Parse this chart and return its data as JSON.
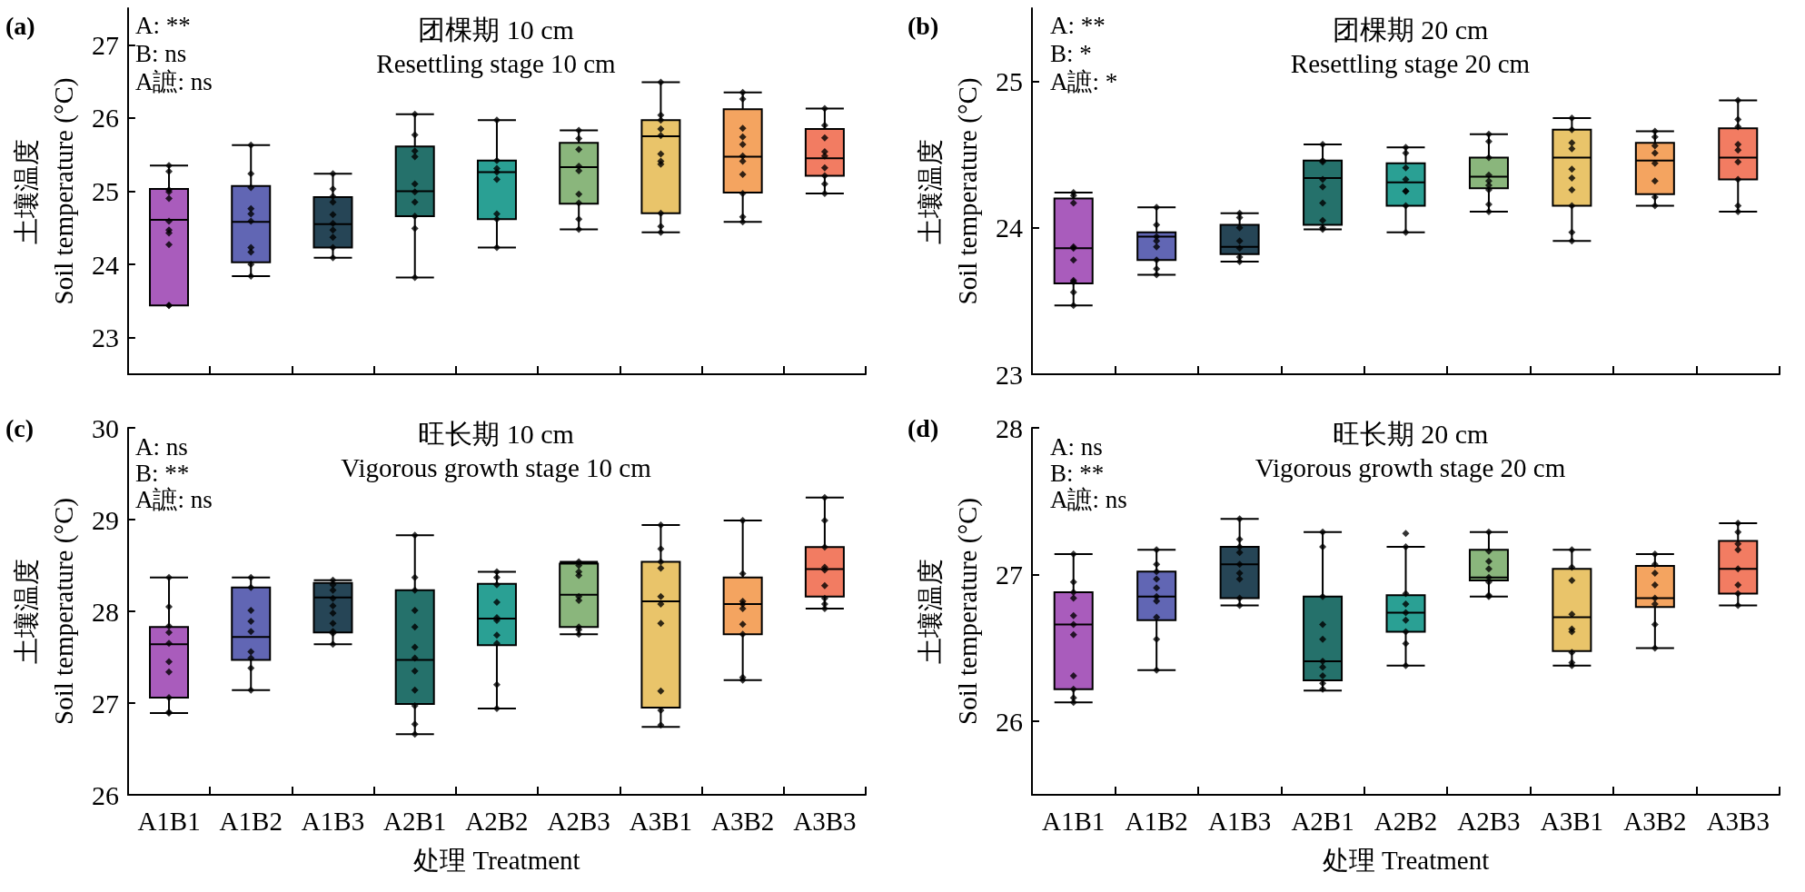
{
  "chart_data": [
    {
      "type": "box",
      "title": "团棵期 10 cm",
      "subtitle": "Resettling stage 10 cm",
      "ylabel": "土壤温度\nSoil temperature (°C)",
      "annotations": [
        "(a)",
        "A: **",
        "B: ns",
        "A謶: ns"
      ],
      "categories": [
        "A1B1",
        "A1B2",
        "A1B3",
        "A2B1",
        "A2B2",
        "A2B3",
        "A3B1",
        "A3B2",
        "A3B3"
      ],
      "colors": [
        "#a95cbc",
        "#6166b4",
        "#264556",
        "#25716b",
        "#2aa094",
        "#8ab67c",
        "#e9c46a",
        "#f4a460",
        "#f27c62"
      ],
      "boxes": [
        {
          "low": 23.44,
          "q1": 23.44,
          "median": 24.61,
          "q3": 25.03,
          "high": 25.35
        },
        {
          "low": 23.84,
          "q1": 24.03,
          "median": 24.58,
          "q3": 25.07,
          "high": 25.63
        },
        {
          "low": 24.09,
          "q1": 24.23,
          "median": 24.55,
          "q3": 24.92,
          "high": 25.24
        },
        {
          "low": 23.82,
          "q1": 24.66,
          "median": 25.0,
          "q3": 25.61,
          "high": 26.05
        },
        {
          "low": 24.23,
          "q1": 24.62,
          "median": 25.26,
          "q3": 25.42,
          "high": 25.97
        },
        {
          "low": 24.48,
          "q1": 24.83,
          "median": 25.33,
          "q3": 25.66,
          "high": 25.83
        },
        {
          "low": 24.44,
          "q1": 24.7,
          "median": 25.75,
          "q3": 25.97,
          "high": 26.49
        },
        {
          "low": 24.58,
          "q1": 24.98,
          "median": 25.47,
          "q3": 26.12,
          "high": 26.35
        },
        {
          "low": 24.97,
          "q1": 25.21,
          "median": 25.45,
          "q3": 25.85,
          "high": 26.13
        }
      ],
      "series": [
        {
          "type": "scatter",
          "color": "#000000",
          "x": [
            "A1B1",
            "A1B1",
            "A1B1",
            "A1B1",
            "A1B1",
            "A1B1",
            "A1B1",
            "A1B1",
            "A1B1",
            "A1B1",
            "A1B1",
            "A1B2",
            "A1B2",
            "A1B2",
            "A1B2",
            "A1B2",
            "A1B2",
            "A1B2",
            "A1B2",
            "A1B2",
            "A1B2",
            "A1B3",
            "A1B3",
            "A1B3",
            "A1B3",
            "A1B3",
            "A1B3",
            "A1B3",
            "A1B3",
            "A1B3",
            "A1B3",
            "A2B1",
            "A2B1",
            "A2B1",
            "A2B1",
            "A2B1",
            "A2B1",
            "A2B1",
            "A2B1",
            "A2B1",
            "A2B1",
            "A2B2",
            "A2B2",
            "A2B2",
            "A2B2",
            "A2B2",
            "A2B2",
            "A2B2",
            "A2B2",
            "A2B3",
            "A2B3",
            "A2B3",
            "A2B3",
            "A2B3",
            "A2B3",
            "A2B3",
            "A2B3",
            "A2B3",
            "A3B1",
            "A3B1",
            "A3B1",
            "A3B1",
            "A3B1",
            "A3B1",
            "A3B1",
            "A3B1",
            "A3B1",
            "A3B1",
            "A3B1",
            "A3B2",
            "A3B2",
            "A3B2",
            "A3B2",
            "A3B2",
            "A3B2",
            "A3B2",
            "A3B2",
            "A3B2",
            "A3B2",
            "A3B2",
            "A3B3",
            "A3B3",
            "A3B3",
            "A3B3",
            "A3B3",
            "A3B3",
            "A3B3",
            "A3B3",
            "A3B3"
          ],
          "values": [
            25.35,
            25.27,
            25.02,
            24.99,
            24.9,
            24.59,
            24.47,
            24.43,
            24.27,
            23.44,
            23.44,
            25.63,
            25.24,
            25.05,
            24.76,
            24.69,
            24.59,
            24.23,
            24.17,
            24.0,
            23.84,
            25.24,
            25.03,
            24.93,
            24.85,
            24.68,
            24.56,
            24.47,
            24.37,
            24.23,
            24.09,
            26.05,
            25.77,
            25.55,
            25.47,
            25.1,
            24.99,
            24.85,
            24.66,
            24.49,
            23.82,
            25.97,
            25.42,
            25.31,
            25.26,
            25.16,
            24.69,
            24.62,
            24.23,
            25.83,
            25.72,
            25.57,
            25.34,
            25.28,
            24.96,
            24.84,
            24.62,
            24.48,
            26.49,
            26.04,
            25.97,
            25.85,
            25.76,
            25.51,
            25.41,
            25.37,
            24.7,
            24.52,
            24.44,
            26.35,
            26.26,
            25.86,
            25.74,
            25.64,
            25.48,
            25.41,
            25.23,
            24.97,
            24.65,
            24.58,
            26.13,
            25.9,
            25.73,
            25.54,
            25.48,
            25.32,
            25.21,
            25.1,
            24.97
          ]
        }
      ],
      "marker": "diamond",
      "ylim": [
        22.5,
        27.5
      ],
      "yticks": [
        23,
        24,
        25,
        26,
        27
      ],
      "tick_labels": "y"
    },
    {
      "type": "box",
      "title": "团棵期 20 cm",
      "subtitle": "Resettling stage 20 cm",
      "ylabel": "土壤温度\nSoil temperature (°C)",
      "annotations": [
        "(b)",
        "A: **",
        "B: *",
        "A謶: *"
      ],
      "categories": [
        "A1B1",
        "A1B2",
        "A1B3",
        "A2B1",
        "A2B2",
        "A2B3",
        "A3B1",
        "A3B2",
        "A3B3"
      ],
      "colors": [
        "#a95cbc",
        "#6166b4",
        "#264556",
        "#25716b",
        "#2aa094",
        "#8ab67c",
        "#e9c46a",
        "#f4a460",
        "#f27c62"
      ],
      "boxes": [
        {
          "low": 23.47,
          "q1": 23.62,
          "median": 23.86,
          "q3": 24.2,
          "high": 24.24
        },
        {
          "low": 23.68,
          "q1": 23.78,
          "median": 23.94,
          "q3": 23.97,
          "high": 24.14
        },
        {
          "low": 23.77,
          "q1": 23.82,
          "median": 23.87,
          "q3": 24.02,
          "high": 24.1
        },
        {
          "low": 23.99,
          "q1": 24.02,
          "median": 24.34,
          "q3": 24.46,
          "high": 24.57
        },
        {
          "low": 23.97,
          "q1": 24.15,
          "median": 24.31,
          "q3": 24.44,
          "high": 24.55
        },
        {
          "low": 24.11,
          "q1": 24.27,
          "median": 24.35,
          "q3": 24.48,
          "high": 24.64
        },
        {
          "low": 23.91,
          "q1": 24.15,
          "median": 24.48,
          "q3": 24.67,
          "high": 24.75
        },
        {
          "low": 24.15,
          "q1": 24.23,
          "median": 24.46,
          "q3": 24.58,
          "high": 24.66
        },
        {
          "low": 24.11,
          "q1": 24.33,
          "median": 24.48,
          "q3": 24.68,
          "high": 24.87
        }
      ],
      "series": [
        {
          "type": "scatter",
          "color": "#000000",
          "x": [
            "A1B1",
            "A1B1",
            "A1B1",
            "A1B1",
            "A1B1",
            "A1B1",
            "A1B1",
            "A1B1",
            "A1B1",
            "A1B1",
            "A1B2",
            "A1B2",
            "A1B2",
            "A1B2",
            "A1B2",
            "A1B2",
            "A1B2",
            "A1B2",
            "A1B3",
            "A1B3",
            "A1B3",
            "A1B3",
            "A1B3",
            "A1B3",
            "A1B3",
            "A2B1",
            "A2B1",
            "A2B1",
            "A2B1",
            "A2B1",
            "A2B1",
            "A2B1",
            "A2B1",
            "A2B1",
            "A2B2",
            "A2B2",
            "A2B2",
            "A2B2",
            "A2B2",
            "A2B2",
            "A2B2",
            "A2B2",
            "A2B3",
            "A2B3",
            "A2B3",
            "A2B3",
            "A2B3",
            "A2B3",
            "A2B3",
            "A2B3",
            "A2B3",
            "A3B1",
            "A3B1",
            "A3B1",
            "A3B1",
            "A3B1",
            "A3B1",
            "A3B1",
            "A3B1",
            "A3B1",
            "A3B1",
            "A3B2",
            "A3B2",
            "A3B2",
            "A3B2",
            "A3B2",
            "A3B2",
            "A3B2",
            "A3B2",
            "A3B3",
            "A3B3",
            "A3B3",
            "A3B3",
            "A3B3",
            "A3B3",
            "A3B3",
            "A3B3",
            "A3B3"
          ],
          "values": [
            24.24,
            24.22,
            24.17,
            23.87,
            23.86,
            23.78,
            23.64,
            23.63,
            23.56,
            23.47,
            24.14,
            24.02,
            23.94,
            23.91,
            23.87,
            23.78,
            23.72,
            23.68,
            24.1,
            24.07,
            24.0,
            23.91,
            23.86,
            23.8,
            23.77,
            24.57,
            24.46,
            24.45,
            24.33,
            24.28,
            24.17,
            24.05,
            24.0,
            23.99,
            24.55,
            24.51,
            24.41,
            24.33,
            24.25,
            24.25,
            24.15,
            23.97,
            24.64,
            24.59,
            24.48,
            24.36,
            24.32,
            24.29,
            24.26,
            24.16,
            24.11,
            24.75,
            24.67,
            24.58,
            24.54,
            24.4,
            24.34,
            24.26,
            24.15,
            23.97,
            23.91,
            24.66,
            24.62,
            24.56,
            24.51,
            24.44,
            24.32,
            24.21,
            24.15,
            24.87,
            24.74,
            24.69,
            24.57,
            24.53,
            24.45,
            24.33,
            24.15,
            24.11
          ]
        }
      ],
      "marker": "diamond",
      "ylim": [
        23,
        25.5
      ],
      "yticks": [
        23,
        24,
        25
      ],
      "tick_labels": "y"
    },
    {
      "type": "box",
      "title": "旺长期 10 cm",
      "subtitle": "Vigorous growth stage 10 cm",
      "xlabel": "处理 Treatment",
      "ylabel": "土壤温度\nSoil temperature (°C)",
      "annotations": [
        "(c)",
        "A: ns",
        "B: **",
        "A謶: ns"
      ],
      "categories": [
        "A1B1",
        "A1B2",
        "A1B3",
        "A2B1",
        "A2B2",
        "A2B3",
        "A3B1",
        "A3B2",
        "A3B3"
      ],
      "colors": [
        "#a95cbc",
        "#6166b4",
        "#264556",
        "#25716b",
        "#2aa094",
        "#8ab67c",
        "#e9c46a",
        "#f4a460",
        "#f27c62"
      ],
      "boxes": [
        {
          "low": 26.89,
          "q1": 27.06,
          "median": 27.64,
          "q3": 27.83,
          "high": 28.37
        },
        {
          "low": 27.14,
          "q1": 27.47,
          "median": 27.72,
          "q3": 28.26,
          "high": 28.37
        },
        {
          "low": 27.64,
          "q1": 27.77,
          "median": 28.15,
          "q3": 28.31,
          "high": 28.34
        },
        {
          "low": 26.66,
          "q1": 26.99,
          "median": 27.47,
          "q3": 28.23,
          "high": 28.83
        },
        {
          "low": 26.94,
          "q1": 27.63,
          "median": 27.92,
          "q3": 28.3,
          "high": 28.43
        },
        {
          "low": 27.75,
          "q1": 27.83,
          "median": 28.18,
          "q3": 28.52,
          "high": 28.54
        },
        {
          "low": 26.74,
          "q1": 26.95,
          "median": 28.11,
          "q3": 28.54,
          "high": 28.94
        },
        {
          "low": 27.25,
          "q1": 27.75,
          "median": 28.08,
          "q3": 28.37,
          "high": 28.99
        },
        {
          "low": 28.03,
          "q1": 28.16,
          "median": 28.46,
          "q3": 28.7,
          "high": 29.24
        }
      ],
      "series": [
        {
          "type": "scatter",
          "color": "#000000",
          "x": [
            "A1B1",
            "A1B1",
            "A1B1",
            "A1B1",
            "A1B1",
            "A1B1",
            "A1B1",
            "A1B1",
            "A1B1",
            "A1B1",
            "A1B2",
            "A1B2",
            "A1B2",
            "A1B2",
            "A1B2",
            "A1B2",
            "A1B2",
            "A1B2",
            "A1B2",
            "A1B3",
            "A1B3",
            "A1B3",
            "A1B3",
            "A1B3",
            "A1B3",
            "A1B3",
            "A1B3",
            "A1B3",
            "A1B3",
            "A2B1",
            "A2B1",
            "A2B1",
            "A2B1",
            "A2B1",
            "A2B1",
            "A2B1",
            "A2B1",
            "A2B1",
            "A2B1",
            "A2B1",
            "A2B1",
            "A2B2",
            "A2B2",
            "A2B2",
            "A2B2",
            "A2B2",
            "A2B2",
            "A2B2",
            "A2B2",
            "A2B2",
            "A2B2",
            "A2B3",
            "A2B3",
            "A2B3",
            "A2B3",
            "A2B3",
            "A2B3",
            "A2B3",
            "A2B3",
            "A2B3",
            "A3B1",
            "A3B1",
            "A3B1",
            "A3B1",
            "A3B1",
            "A3B1",
            "A3B1",
            "A3B1",
            "A3B1",
            "A3B1",
            "A3B2",
            "A3B2",
            "A3B2",
            "A3B2",
            "A3B2",
            "A3B2",
            "A3B2",
            "A3B2",
            "A3B2",
            "A3B3",
            "A3B3",
            "A3B3",
            "A3B3",
            "A3B3",
            "A3B3",
            "A3B3",
            "A3B3",
            "A3B3"
          ],
          "values": [
            28.37,
            28.05,
            27.84,
            27.77,
            27.65,
            27.45,
            27.34,
            27.06,
            26.9,
            26.89,
            28.37,
            28.26,
            28.01,
            27.89,
            27.78,
            27.56,
            27.49,
            27.38,
            27.14,
            28.34,
            28.29,
            28.23,
            28.14,
            28.06,
            27.98,
            27.87,
            27.78,
            27.76,
            27.64,
            28.83,
            28.37,
            28.23,
            28.01,
            27.83,
            27.61,
            27.49,
            27.35,
            27.14,
            26.97,
            26.77,
            26.66,
            28.43,
            28.37,
            28.29,
            28.1,
            27.93,
            27.9,
            27.74,
            27.65,
            27.2,
            26.94,
            28.54,
            28.5,
            28.43,
            28.39,
            28.16,
            28.12,
            27.83,
            27.8,
            27.75,
            28.94,
            28.68,
            28.54,
            28.47,
            28.16,
            28.08,
            27.87,
            27.13,
            26.92,
            26.76,
            28.99,
            28.41,
            28.11,
            28.08,
            28.03,
            27.86,
            27.75,
            27.28,
            27.25,
            29.24,
            28.99,
            28.7,
            28.48,
            28.45,
            28.28,
            28.14,
            28.08,
            28.03
          ]
        }
      ],
      "marker": "diamond",
      "ylim": [
        26,
        30
      ],
      "yticks": [
        26,
        27,
        28,
        29,
        30
      ]
    },
    {
      "type": "box",
      "title": "旺长期 20 cm",
      "subtitle": "Vigorous growth stage 20 cm",
      "xlabel": "处理 Treatment",
      "ylabel": "土壤温度\nSoil temperature (°C)",
      "annotations": [
        "(d)",
        "A: ns",
        "B: **",
        "A謶: ns"
      ],
      "categories": [
        "A1B1",
        "A1B2",
        "A1B3",
        "A2B1",
        "A2B2",
        "A2B3",
        "A3B1",
        "A3B2",
        "A3B3"
      ],
      "colors": [
        "#a95cbc",
        "#6166b4",
        "#264556",
        "#25716b",
        "#2aa094",
        "#8ab67c",
        "#e9c46a",
        "#f4a460",
        "#f27c62"
      ],
      "boxes": [
        {
          "low": 26.13,
          "q1": 26.22,
          "median": 26.66,
          "q3": 26.88,
          "high": 27.14
        },
        {
          "low": 26.35,
          "q1": 26.69,
          "median": 26.85,
          "q3": 27.02,
          "high": 27.17
        },
        {
          "low": 26.79,
          "q1": 26.84,
          "median": 27.07,
          "q3": 27.19,
          "high": 27.38
        },
        {
          "low": 26.21,
          "q1": 26.28,
          "median": 26.41,
          "q3": 26.85,
          "high": 27.29
        },
        {
          "low": 26.38,
          "q1": 26.61,
          "median": 26.74,
          "q3": 26.86,
          "high": 27.19
        },
        {
          "low": 26.85,
          "q1": 26.96,
          "median": 26.98,
          "q3": 27.17,
          "high": 27.29
        },
        {
          "low": 26.38,
          "q1": 26.48,
          "median": 26.71,
          "q3": 27.04,
          "high": 27.17
        },
        {
          "low": 26.5,
          "q1": 26.78,
          "median": 26.84,
          "q3": 27.06,
          "high": 27.14
        },
        {
          "low": 26.79,
          "q1": 26.87,
          "median": 27.04,
          "q3": 27.23,
          "high": 27.35
        }
      ],
      "series": [
        {
          "type": "scatter",
          "color": "#000000",
          "x": [
            "A1B1",
            "A1B1",
            "A1B1",
            "A1B1",
            "A1B1",
            "A1B1",
            "A1B1",
            "A1B1",
            "A1B1",
            "A1B1",
            "A1B1",
            "A1B2",
            "A1B2",
            "A1B2",
            "A1B2",
            "A1B2",
            "A1B2",
            "A1B2",
            "A1B2",
            "A1B2",
            "A1B2",
            "A1B3",
            "A1B3",
            "A1B3",
            "A1B3",
            "A1B3",
            "A1B3",
            "A1B3",
            "A1B3",
            "A1B3",
            "A2B1",
            "A2B1",
            "A2B1",
            "A2B1",
            "A2B1",
            "A2B1",
            "A2B1",
            "A2B1",
            "A2B1",
            "A2B1",
            "A2B2",
            "A2B2",
            "A2B2",
            "A2B2",
            "A2B2",
            "A2B2",
            "A2B2",
            "A2B2",
            "A2B2",
            "A2B3",
            "A2B3",
            "A2B3",
            "A2B3",
            "A2B3",
            "A2B3",
            "A2B3",
            "A2B3",
            "A3B1",
            "A3B1",
            "A3B1",
            "A3B1",
            "A3B1",
            "A3B1",
            "A3B1",
            "A3B1",
            "A3B1",
            "A3B2",
            "A3B2",
            "A3B2",
            "A3B2",
            "A3B2",
            "A3B2",
            "A3B2",
            "A3B2",
            "A3B3",
            "A3B3",
            "A3B3",
            "A3B3",
            "A3B3",
            "A3B3",
            "A3B3",
            "A3B3"
          ],
          "values": [
            27.14,
            26.95,
            26.88,
            26.84,
            26.72,
            26.66,
            26.59,
            26.31,
            26.22,
            26.16,
            26.13,
            27.17,
            27.07,
            27.02,
            26.97,
            26.91,
            26.85,
            26.82,
            26.71,
            26.56,
            26.35,
            27.38,
            27.24,
            27.19,
            27.15,
            27.07,
            27.01,
            26.97,
            26.84,
            26.79,
            27.29,
            27.19,
            26.85,
            26.66,
            26.56,
            26.41,
            26.37,
            26.31,
            26.26,
            26.22,
            27.28,
            27.19,
            26.87,
            26.8,
            26.74,
            26.69,
            26.61,
            26.53,
            26.38,
            27.29,
            27.16,
            27.09,
            27.04,
            26.98,
            26.95,
            26.86,
            26.85,
            27.17,
            27.05,
            26.96,
            26.73,
            26.63,
            26.61,
            26.47,
            26.4,
            26.38,
            27.14,
            27.07,
            27.01,
            26.93,
            26.84,
            26.8,
            26.66,
            26.5,
            27.35,
            27.29,
            27.21,
            27.17,
            27.04,
            26.93,
            26.87,
            26.79
          ]
        }
      ],
      "marker": "diamond",
      "ylim": [
        25.5,
        28
      ],
      "yticks": [
        26,
        27,
        28
      ]
    }
  ]
}
